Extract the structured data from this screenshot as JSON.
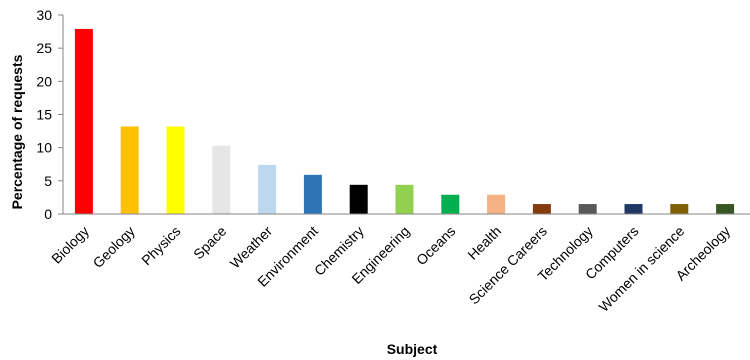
{
  "chart_data": {
    "type": "bar",
    "title": "",
    "xlabel": "Subject",
    "ylabel": "Percentage of requests",
    "ylim": [
      0,
      30
    ],
    "yticks": [
      0,
      5,
      10,
      15,
      20,
      25,
      30
    ],
    "ytick_labels": [
      "0",
      "5",
      "10",
      "15",
      "20",
      "25",
      "30"
    ],
    "grid": false,
    "legend": "none",
    "categories": [
      "Biology",
      "Geology",
      "Physics",
      "Space",
      "Weather",
      "Environment",
      "Chemistry",
      "Engineering",
      "Oceans",
      "Health",
      "Science Careers",
      "Technology",
      "Computers",
      "Women in science",
      "Archeology"
    ],
    "values": [
      27.9,
      13.2,
      13.2,
      10.3,
      7.4,
      5.9,
      4.4,
      4.4,
      2.9,
      2.9,
      1.5,
      1.5,
      1.5,
      1.5,
      1.5
    ],
    "colors": [
      "#ff0000",
      "#ffc000",
      "#ffff00",
      "#e6e6e6",
      "#bdd7ee",
      "#2e75b6",
      "#000000",
      "#92d050",
      "#00b050",
      "#f4b183",
      "#843c0c",
      "#595959",
      "#203864",
      "#7f6000",
      "#375623"
    ]
  }
}
